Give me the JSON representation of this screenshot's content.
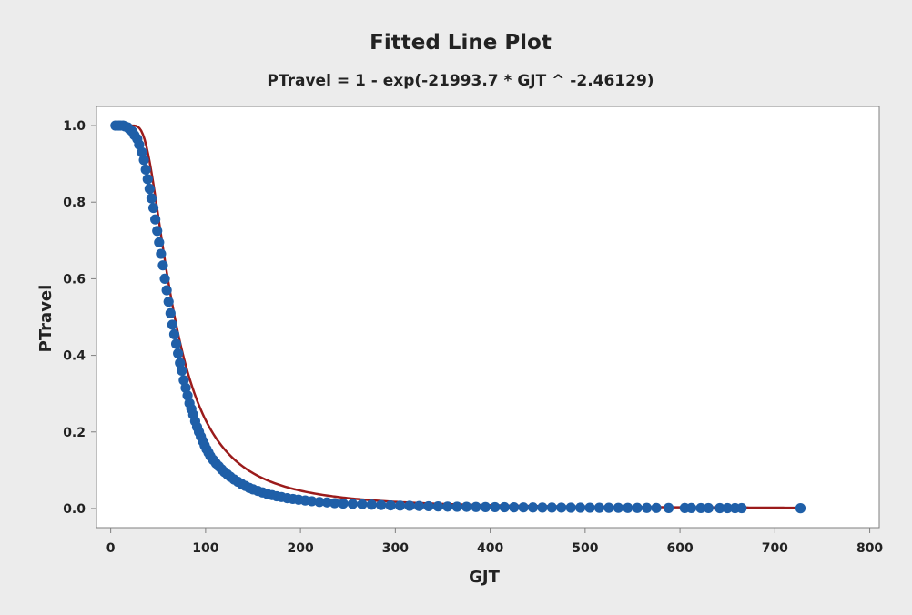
{
  "colors": {
    "figure_background": "#ececec",
    "plot_background": "#ffffff",
    "points": "#1f5fa8",
    "fitted_line": "#9b1b1b",
    "axis": "#7f7f7f"
  },
  "chart_data": {
    "type": "scatter",
    "title": "Fitted Line Plot",
    "subtitle": "PTravel = 1 - exp(-21993.7 * GJT ^ -2.46129)",
    "xlabel": "GJT",
    "ylabel": "PTravel",
    "xlim": [
      -15,
      810
    ],
    "ylim": [
      -0.05,
      1.05
    ],
    "xticks": [
      0,
      100,
      200,
      300,
      400,
      500,
      600,
      700,
      800
    ],
    "xtick_labels": [
      "0",
      "100",
      "200",
      "300",
      "400",
      "500",
      "600",
      "700",
      "800"
    ],
    "yticks": [
      0.0,
      0.2,
      0.4,
      0.6,
      0.8,
      1.0
    ],
    "ytick_labels": [
      "0.0",
      "0.2",
      "0.4",
      "0.6",
      "0.8",
      "1.0"
    ],
    "grid": false,
    "legend": "none",
    "fit": {
      "a": 21993.7,
      "b": 2.46129,
      "x_range": [
        5,
        727
      ]
    },
    "series": [
      {
        "x": [
          5,
          8,
          10,
          13,
          15,
          18,
          20,
          23,
          25,
          28,
          30,
          33,
          35,
          37,
          39,
          41,
          43,
          45,
          47,
          49,
          51,
          53,
          55,
          57,
          59,
          61,
          63,
          65,
          67,
          69,
          71,
          73,
          75,
          77,
          79,
          81,
          83,
          85,
          87,
          89,
          91,
          93,
          95,
          97,
          99,
          101,
          103,
          105,
          108,
          111,
          114,
          117,
          120,
          123,
          126,
          130,
          134,
          138,
          142,
          146,
          150,
          155,
          160,
          165,
          170,
          175,
          180,
          186,
          192,
          198,
          205,
          212,
          220,
          228,
          236,
          245,
          255,
          265,
          275,
          285,
          295,
          305,
          315,
          325,
          335,
          345,
          355,
          365,
          375,
          385,
          395,
          405,
          415,
          425,
          435,
          445,
          455,
          465,
          475,
          485,
          495,
          505,
          515,
          525,
          535,
          545,
          555,
          565,
          575,
          588,
          605,
          612,
          622,
          630,
          642,
          650,
          658,
          665,
          727
        ],
        "y": [
          1.0,
          1.0,
          1.0,
          1.0,
          0.998,
          0.995,
          0.99,
          0.984,
          0.975,
          0.965,
          0.95,
          0.93,
          0.91,
          0.885,
          0.86,
          0.835,
          0.81,
          0.785,
          0.755,
          0.725,
          0.695,
          0.665,
          0.635,
          0.6,
          0.57,
          0.54,
          0.51,
          0.48,
          0.455,
          0.43,
          0.405,
          0.38,
          0.36,
          0.335,
          0.315,
          0.295,
          0.275,
          0.26,
          0.245,
          0.228,
          0.213,
          0.2,
          0.188,
          0.176,
          0.165,
          0.155,
          0.146,
          0.137,
          0.127,
          0.118,
          0.11,
          0.102,
          0.095,
          0.089,
          0.083,
          0.076,
          0.07,
          0.064,
          0.059,
          0.054,
          0.05,
          0.046,
          0.042,
          0.038,
          0.035,
          0.032,
          0.03,
          0.027,
          0.025,
          0.023,
          0.021,
          0.019,
          0.017,
          0.016,
          0.014,
          0.013,
          0.012,
          0.011,
          0.01,
          0.009,
          0.008,
          0.0075,
          0.007,
          0.0065,
          0.006,
          0.0055,
          0.005,
          0.0047,
          0.0044,
          0.0041,
          0.0038,
          0.0036,
          0.0034,
          0.0032,
          0.003,
          0.0028,
          0.0026,
          0.0025,
          0.0024,
          0.0023,
          0.0022,
          0.0021,
          0.002,
          0.0019,
          0.0018,
          0.0017,
          0.0016,
          0.0016,
          0.0015,
          0.0014,
          0.0013,
          0.0013,
          0.0012,
          0.0012,
          0.0011,
          0.0011,
          0.001,
          0.001,
          0.0008
        ]
      }
    ]
  }
}
